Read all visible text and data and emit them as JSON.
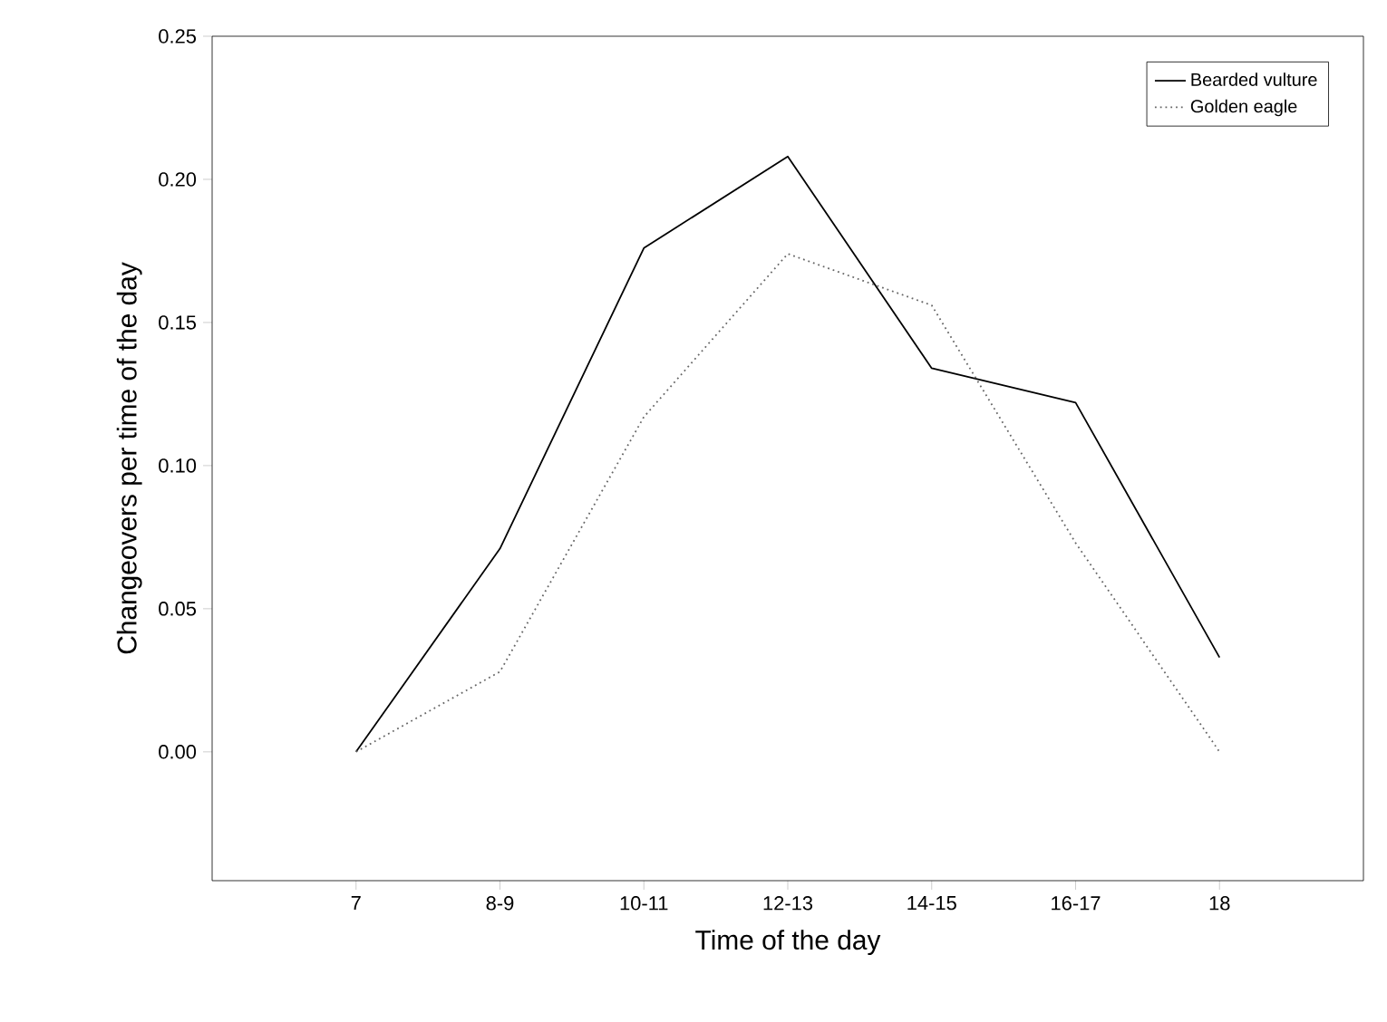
{
  "chart_data": {
    "type": "line",
    "xlabel": "Time of the day",
    "ylabel": "Changeovers per time of the day",
    "categories": [
      "7",
      "8-9",
      "10-11",
      "12-13",
      "14-15",
      "16-17",
      "18"
    ],
    "series": [
      {
        "name": "Bearded vulture",
        "color": "#000000",
        "line_style": "solid",
        "values": [
          0,
          0.071,
          0.176,
          0.208,
          0.134,
          0.122,
          0.033
        ]
      },
      {
        "name": "Golden eagle",
        "color": "#666666",
        "line_style": "dotted",
        "values": [
          0,
          0.028,
          0.117,
          0.174,
          0.156,
          0.073,
          0
        ]
      }
    ],
    "ylim": [
      -0.045,
      0.25
    ],
    "yticks": [
      {
        "value": 0,
        "label": "0.00"
      },
      {
        "value": 0.05,
        "label": "0.05"
      },
      {
        "value": 0.1,
        "label": "0.10"
      },
      {
        "value": 0.15,
        "label": "0.15"
      },
      {
        "value": 0.2,
        "label": "0.20"
      },
      {
        "value": 0.25,
        "label": "0.25"
      }
    ],
    "legend": "top right",
    "grid": false,
    "marker": "none"
  }
}
